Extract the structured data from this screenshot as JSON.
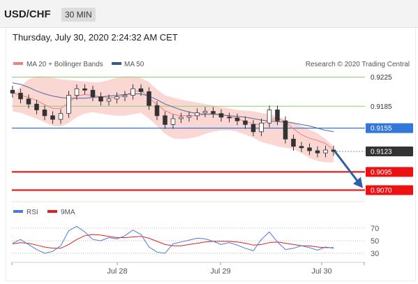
{
  "header": {
    "symbol": "USD/CHF",
    "timeframe": "30 MIN"
  },
  "timestamp": "Thursday, July 30, 2020 2:24:32 AM CET",
  "legend": {
    "ma20_bb": "MA 20 + Bollinger Bands",
    "ma50": "MA 50",
    "credit": "Research © 2020 Trading Central"
  },
  "rsi_legend": {
    "rsi": "RSI",
    "ma9": "9MA"
  },
  "colors": {
    "up_candle": "#ffffff",
    "down_candle": "#333333",
    "bollinger_fill": "#f9c9c5",
    "ma20": "#f08080",
    "ma50": "#4a6a9a",
    "resistance": "#8fcf6a",
    "pivot": "#3377dd",
    "support": "#ee1111",
    "current": "#333333",
    "rsi": "#4a7adf",
    "rsi_ma": "#dd2222"
  },
  "chart_data": [
    {
      "type": "candlestick",
      "instrument": "USD/CHF",
      "interval": "30 MIN",
      "x_ticks": [
        "Jul 28",
        "Jul 29",
        "Jul 30"
      ],
      "ylim": [
        0.9058,
        0.9235
      ],
      "series": [
        {
          "name": "MA 20 + Bollinger Bands",
          "upper": [
            0.92,
            0.9212,
            0.9222,
            0.9226,
            0.9226,
            0.9224,
            0.9222,
            0.9221,
            0.922,
            0.9219,
            0.9218,
            0.9218,
            0.9221,
            0.9224,
            0.9226,
            0.9226,
            0.9224,
            0.9218,
            0.9208,
            0.92,
            0.9197,
            0.9194,
            0.9192,
            0.919,
            0.9188,
            0.9186,
            0.9184,
            0.9182,
            0.918,
            0.9179,
            0.9178,
            0.9176,
            0.9174,
            0.9171,
            0.9167,
            0.9163,
            0.9158,
            0.9153,
            0.9148,
            0.914,
            0.913
          ],
          "middle": [
            0.9203,
            0.92,
            0.9197,
            0.9193,
            0.9187,
            0.9182,
            0.9182,
            0.919,
            0.9199,
            0.9201,
            0.92,
            0.9198,
            0.9197,
            0.9197,
            0.92,
            0.9205,
            0.9207,
            0.9197,
            0.9187,
            0.9179,
            0.9174,
            0.9172,
            0.9172,
            0.9172,
            0.9174,
            0.9175,
            0.9174,
            0.9171,
            0.9168,
            0.9164,
            0.9161,
            0.9159,
            0.9166,
            0.9169,
            0.9163,
            0.9154,
            0.9146,
            0.9141,
            0.9138,
            0.9134,
            0.9125
          ],
          "lower": [
            0.9178,
            0.9176,
            0.9172,
            0.9168,
            0.9163,
            0.9158,
            0.9157,
            0.9162,
            0.917,
            0.9175,
            0.9177,
            0.9175,
            0.9173,
            0.9172,
            0.9172,
            0.9174,
            0.9176,
            0.9168,
            0.9158,
            0.9147,
            0.9141,
            0.914,
            0.9141,
            0.9143,
            0.9147,
            0.915,
            0.9152,
            0.9152,
            0.915,
            0.9146,
            0.9142,
            0.9136,
            0.9133,
            0.913,
            0.9128,
            0.9126,
            0.9121,
            0.9114,
            0.911,
            0.9108,
            0.9108
          ]
        },
        {
          "name": "MA 50",
          "values": [
            0.9217,
            0.9215,
            0.9211,
            0.9206,
            0.9202,
            0.9199,
            0.9197,
            0.9196,
            0.9196,
            0.9196,
            0.9197,
            0.9198,
            0.9199,
            0.92,
            0.9201,
            0.9202,
            0.9202,
            0.9199,
            0.9194,
            0.9188,
            0.9184,
            0.918,
            0.9177,
            0.9175,
            0.9174,
            0.9174,
            0.9173,
            0.9172,
            0.9171,
            0.917,
            0.9168,
            0.9166,
            0.9165,
            0.9164,
            0.9163,
            0.9162,
            0.916,
            0.9158,
            0.9155,
            0.9152,
            0.915
          ]
        }
      ],
      "candles_close": [
        0.9203,
        0.9195,
        0.9188,
        0.918,
        0.9172,
        0.9167,
        0.9175,
        0.92,
        0.9209,
        0.9207,
        0.9198,
        0.9192,
        0.9195,
        0.9198,
        0.92,
        0.9209,
        0.9205,
        0.9186,
        0.9172,
        0.916,
        0.9168,
        0.917,
        0.9172,
        0.9176,
        0.9178,
        0.9175,
        0.917,
        0.9169,
        0.9165,
        0.916,
        0.915,
        0.9162,
        0.918,
        0.9165,
        0.914,
        0.913,
        0.9128,
        0.9124,
        0.9121,
        0.9125,
        0.9123
      ],
      "levels": [
        {
          "value": "0.9225",
          "kind": "resistance"
        },
        {
          "value": "0.9185",
          "kind": "resistance"
        },
        {
          "value": "0.9155",
          "kind": "pivot"
        },
        {
          "value": "0.9123",
          "kind": "current"
        },
        {
          "value": "0.9095",
          "kind": "support"
        },
        {
          "value": "0.9070",
          "kind": "support"
        }
      ],
      "forecast_arrow": {
        "from": 0.9123,
        "to": 0.907,
        "direction": "down"
      }
    },
    {
      "type": "line",
      "title": "RSI",
      "ylim": [
        20,
        80
      ],
      "y_ticks": [
        "70",
        "50",
        "30"
      ],
      "series": [
        {
          "name": "RSI",
          "values": [
            46,
            52,
            44,
            36,
            30,
            33,
            42,
            66,
            73,
            64,
            52,
            50,
            55,
            53,
            58,
            67,
            60,
            40,
            32,
            30,
            45,
            48,
            51,
            54,
            53,
            49,
            44,
            47,
            43,
            38,
            34,
            52,
            64,
            48,
            36,
            38,
            42,
            39,
            35,
            40,
            38
          ]
        },
        {
          "name": "9MA",
          "values": [
            45,
            47,
            46,
            43,
            40,
            38,
            38,
            44,
            52,
            58,
            60,
            59,
            57,
            55,
            55,
            56,
            57,
            54,
            49,
            44,
            42,
            42,
            44,
            46,
            48,
            49,
            49,
            49,
            48,
            46,
            43,
            44,
            47,
            48,
            46,
            44,
            42,
            42,
            40,
            39,
            39
          ]
        }
      ]
    }
  ]
}
